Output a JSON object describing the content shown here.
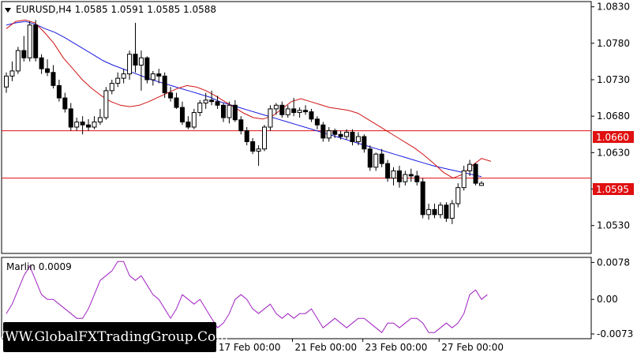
{
  "header": {
    "symbol_line": "EURUSD,H4  1.0585 1.0591 1.0585 1.0588"
  },
  "indicator": {
    "label": "Marlin 0.0009"
  },
  "watermark": {
    "text": "WWW.GlobalFXTradingGroup.Com"
  },
  "levels": {
    "resistance_label": "1.0660",
    "support_label": "1.0595",
    "color": "#e01010"
  },
  "chart_data": [
    {
      "type": "candlestick",
      "title": "EURUSD,H4",
      "ylim": [
        1.0495,
        1.0835
      ],
      "y_ticks": [
        "1.0830",
        "1.0780",
        "1.0730",
        "1.0680",
        "1.0630",
        "1.0580",
        "1.0530"
      ],
      "x_ticks": [
        "17 Feb 00:00",
        "21 Feb 00:00",
        "23 Feb 00:00",
        "27 Feb 00:00"
      ],
      "horizontal_levels": [
        1.066,
        1.0595
      ],
      "candles": [
        [
          1.072,
          1.074,
          1.0712,
          1.0735
        ],
        [
          1.0735,
          1.0755,
          1.0728,
          1.0742
        ],
        [
          1.0742,
          1.0775,
          1.0738,
          1.077
        ],
        [
          1.077,
          1.079,
          1.0755,
          1.076
        ],
        [
          1.076,
          1.081,
          1.0755,
          1.0805
        ],
        [
          1.0805,
          1.0812,
          1.0755,
          1.076
        ],
        [
          1.076,
          1.0765,
          1.0738,
          1.0745
        ],
        [
          1.0745,
          1.0758,
          1.0735,
          1.074
        ],
        [
          1.074,
          1.075,
          1.0718,
          1.0722
        ],
        [
          1.0722,
          1.073,
          1.07,
          1.0705
        ],
        [
          1.0705,
          1.0712,
          1.0685,
          1.069
        ],
        [
          1.069,
          1.0698,
          1.066,
          1.0665
        ],
        [
          1.0665,
          1.0678,
          1.066,
          1.0672
        ],
        [
          1.0672,
          1.068,
          1.0655,
          1.0668
        ],
        [
          1.0668,
          1.0676,
          1.066,
          1.0665
        ],
        [
          1.0665,
          1.068,
          1.0662,
          1.0672
        ],
        [
          1.0672,
          1.069,
          1.0668,
          1.0678
        ],
        [
          1.0678,
          1.072,
          1.0675,
          1.0715
        ],
        [
          1.0715,
          1.073,
          1.071,
          1.0725
        ],
        [
          1.0725,
          1.074,
          1.072,
          1.0732
        ],
        [
          1.0732,
          1.0745,
          1.0725,
          1.0738
        ],
        [
          1.0738,
          1.077,
          1.073,
          1.0765
        ],
        [
          1.0765,
          1.0808,
          1.074,
          1.075
        ],
        [
          1.075,
          1.077,
          1.0715,
          1.076
        ],
        [
          1.076,
          1.0762,
          1.0725,
          1.073
        ],
        [
          1.073,
          1.0742,
          1.0722,
          1.0738
        ],
        [
          1.0738,
          1.0745,
          1.0725,
          1.0735
        ],
        [
          1.0735,
          1.074,
          1.0705,
          1.0712
        ],
        [
          1.0712,
          1.072,
          1.07,
          1.0705
        ],
        [
          1.0705,
          1.0712,
          1.069,
          1.0692
        ],
        [
          1.0692,
          1.07,
          1.0668,
          1.0672
        ],
        [
          1.0672,
          1.068,
          1.0662,
          1.0665
        ],
        [
          1.0665,
          1.069,
          1.0662,
          1.0685
        ],
        [
          1.0685,
          1.0702,
          1.068,
          1.0698
        ],
        [
          1.0698,
          1.0712,
          1.069,
          1.0702
        ],
        [
          1.0702,
          1.0715,
          1.0695,
          1.07
        ],
        [
          1.07,
          1.0708,
          1.069,
          1.0695
        ],
        [
          1.0695,
          1.0698,
          1.0672,
          1.0678
        ],
        [
          1.0678,
          1.07,
          1.067,
          1.0695
        ],
        [
          1.0695,
          1.0702,
          1.0672,
          1.0675
        ],
        [
          1.0675,
          1.068,
          1.0655,
          1.066
        ],
        [
          1.066,
          1.0665,
          1.064,
          1.0645
        ],
        [
          1.0645,
          1.065,
          1.0628,
          1.0632
        ],
        [
          1.0632,
          1.064,
          1.0612,
          1.0635
        ],
        [
          1.0635,
          1.0668,
          1.0632,
          1.0665
        ],
        [
          1.0665,
          1.0695,
          1.066,
          1.069
        ],
        [
          1.069,
          1.0698,
          1.0682,
          1.0695
        ],
        [
          1.0695,
          1.07,
          1.0678,
          1.0682
        ],
        [
          1.0682,
          1.0695,
          1.0678,
          1.069
        ],
        [
          1.069,
          1.0705,
          1.068,
          1.0685
        ],
        [
          1.0685,
          1.0692,
          1.0678,
          1.0688
        ],
        [
          1.0688,
          1.0695,
          1.0682,
          1.0686
        ],
        [
          1.0686,
          1.069,
          1.0672,
          1.0676
        ],
        [
          1.0676,
          1.068,
          1.0662,
          1.0668
        ],
        [
          1.0668,
          1.0672,
          1.0645,
          1.065
        ],
        [
          1.065,
          1.0665,
          1.0645,
          1.066
        ],
        [
          1.066,
          1.0663,
          1.065,
          1.0655
        ],
        [
          1.0655,
          1.066,
          1.0648,
          1.0652
        ],
        [
          1.0652,
          1.0662,
          1.0648,
          1.0658
        ],
        [
          1.0658,
          1.0662,
          1.064,
          1.0645
        ],
        [
          1.0645,
          1.0658,
          1.064,
          1.0652
        ],
        [
          1.0652,
          1.0655,
          1.063,
          1.0635
        ],
        [
          1.0635,
          1.064,
          1.0605,
          1.061
        ],
        [
          1.061,
          1.063,
          1.0605,
          1.0628
        ],
        [
          1.0628,
          1.0635,
          1.061,
          1.0615
        ],
        [
          1.0615,
          1.062,
          1.059,
          1.0595
        ],
        [
          1.0595,
          1.061,
          1.0585,
          1.0605
        ],
        [
          1.0605,
          1.0612,
          1.0582,
          1.059
        ],
        [
          1.059,
          1.0605,
          1.0585,
          1.06
        ],
        [
          1.06,
          1.0608,
          1.059,
          1.0598
        ],
        [
          1.0598,
          1.0605,
          1.0585,
          1.059
        ],
        [
          1.059,
          1.0595,
          1.054,
          1.0545
        ],
        [
          1.0545,
          1.056,
          1.0538,
          1.0552
        ],
        [
          1.0552,
          1.056,
          1.054,
          1.0545
        ],
        [
          1.0545,
          1.0562,
          1.054,
          1.0558
        ],
        [
          1.0558,
          1.0562,
          1.0535,
          1.054
        ],
        [
          1.054,
          1.0565,
          1.0532,
          1.056
        ],
        [
          1.056,
          1.0588,
          1.0555,
          1.0582
        ],
        [
          1.0582,
          1.0612,
          1.0578,
          1.0605
        ],
        [
          1.0605,
          1.062,
          1.0598,
          1.0614
        ],
        [
          1.0614,
          1.0616,
          1.0585,
          1.0588
        ],
        [
          1.0585,
          1.0591,
          1.0585,
          1.0588
        ]
      ],
      "moving_average_blue": [
        1.0805,
        1.0808,
        1.081,
        1.0806,
        1.08,
        1.0795,
        1.0788,
        1.078,
        1.0772,
        1.0764,
        1.0756,
        1.075,
        1.0745,
        1.074,
        1.0735,
        1.073,
        1.0726,
        1.0722,
        1.0718,
        1.0714,
        1.071,
        1.0706,
        1.07,
        1.0696,
        1.0692,
        1.0688,
        1.0684,
        1.068,
        1.0676,
        1.0672,
        1.0668,
        1.0664,
        1.066,
        1.0656,
        1.0652,
        1.0648,
        1.0644,
        1.064,
        1.0636,
        1.0632,
        1.0628,
        1.0624,
        1.062,
        1.0616,
        1.0612,
        1.0609,
        1.0606,
        1.0603,
        1.06,
        1.0597
      ],
      "moving_average_red": [
        1.08,
        1.081,
        1.0812,
        1.0808,
        1.0795,
        1.078,
        1.076,
        1.0745,
        1.073,
        1.0718,
        1.0708,
        1.07,
        1.0695,
        1.0693,
        1.0695,
        1.07,
        1.0706,
        1.0712,
        1.0718,
        1.0722,
        1.072,
        1.0715,
        1.0708,
        1.07,
        1.0692,
        1.0684,
        1.0678,
        1.0676,
        1.068,
        1.069,
        1.07,
        1.0704,
        1.07,
        1.0696,
        1.0692,
        1.069,
        1.0688,
        1.0684,
        1.0676,
        1.0668,
        1.066,
        1.0652,
        1.0644,
        1.0636,
        1.0626,
        1.0615,
        1.0603,
        1.0595,
        1.06,
        1.0612,
        1.0622,
        1.0618
      ]
    },
    {
      "type": "line",
      "title": "Marlin 0.0009",
      "y_ticks": [
        "0.0078",
        "0.00",
        "-0.0073"
      ],
      "ylim": [
        -0.0078,
        0.0082
      ],
      "values": [
        -0.003,
        -0.001,
        0.002,
        0.005,
        0.007,
        0.004,
        0.001,
        0.0,
        0.0,
        -0.001,
        -0.002,
        -0.003,
        -0.004,
        -0.004,
        -0.002,
        0.001,
        0.004,
        0.005,
        0.006,
        0.008,
        0.008,
        0.005,
        0.004,
        0.005,
        0.003,
        0.001,
        0.0,
        -0.002,
        -0.004,
        -0.002,
        0.001,
        0.0,
        -0.001,
        0.0,
        -0.002,
        -0.004,
        -0.006,
        -0.005,
        -0.003,
        0.0,
        0.001,
        0.0,
        -0.002,
        -0.003,
        -0.002,
        -0.001,
        -0.003,
        -0.004,
        -0.003,
        -0.004,
        -0.003,
        -0.003,
        -0.002,
        -0.004,
        -0.006,
        -0.005,
        -0.004,
        -0.005,
        -0.006,
        -0.005,
        -0.004,
        -0.004,
        -0.005,
        -0.006,
        -0.007,
        -0.005,
        -0.005,
        -0.006,
        -0.005,
        -0.004,
        -0.004,
        -0.005,
        -0.007,
        -0.007,
        -0.006,
        -0.005,
        -0.006,
        -0.005,
        -0.003,
        0.001,
        0.002,
        0.0,
        0.001
      ]
    }
  ]
}
